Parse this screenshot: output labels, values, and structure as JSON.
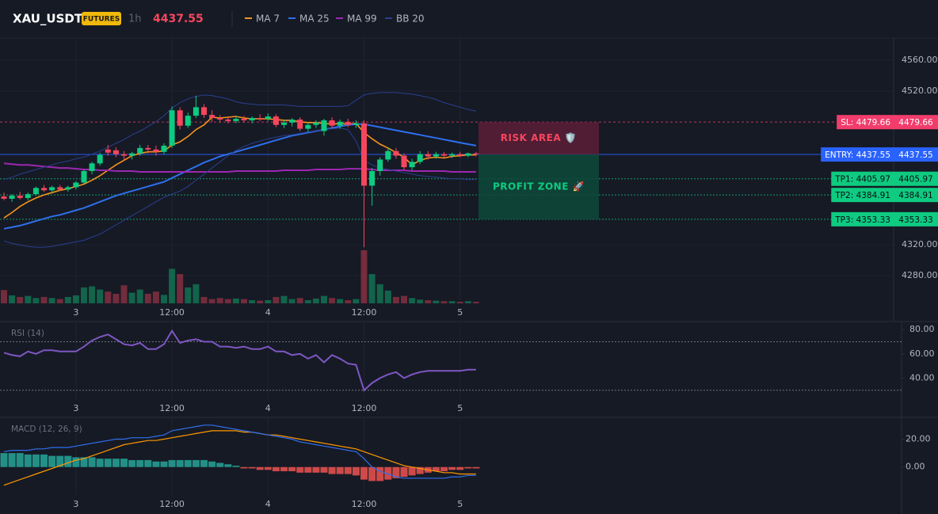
{
  "header": {
    "symbol": "XAU_USDT",
    "badge": "FUTURES",
    "interval": "1h",
    "price": 4437.55
  },
  "chart_data": [
    {
      "type": "candlestick",
      "categories": [
        null,
        null,
        null,
        null,
        null,
        null,
        null,
        null,
        null,
        "3",
        null,
        null,
        null,
        null,
        null,
        null,
        null,
        null,
        null,
        null,
        null,
        "12:00",
        null,
        null,
        null,
        null,
        null,
        null,
        null,
        null,
        null,
        null,
        null,
        "4",
        null,
        null,
        null,
        null,
        null,
        null,
        null,
        null,
        null,
        null,
        null,
        "12:00",
        null,
        null,
        null,
        null,
        null,
        null,
        null,
        null,
        null,
        null,
        null,
        "5",
        null,
        null
      ],
      "open": [
        4383,
        4380,
        4384,
        4381,
        4386,
        4394,
        4391,
        4395,
        4392,
        4395,
        4401,
        4416,
        4426,
        4444,
        4443,
        4438,
        4436,
        4439,
        4446,
        4444,
        4441,
        4449,
        4495,
        4475,
        4488,
        4499,
        4489,
        4485,
        4483,
        4481,
        4484,
        4482,
        4485,
        4484,
        4487,
        4476,
        4479,
        4483,
        4471,
        4476,
        4468,
        4482,
        4475,
        4480,
        4476,
        4478,
        4397,
        4416,
        4431,
        4442,
        4436,
        4421,
        4428,
        4438,
        4435,
        4438,
        4436,
        4438,
        4436,
        4439
      ],
      "high": [
        4388,
        4386,
        4389,
        4388,
        4396,
        4398,
        4397,
        4398,
        4397,
        4403,
        4418,
        4428,
        4440,
        4450,
        4447,
        4442,
        4441,
        4450,
        4450,
        4449,
        4452,
        4500,
        4499,
        4492,
        4514,
        4503,
        4495,
        4489,
        4487,
        4488,
        4488,
        4487,
        4490,
        4491,
        4490,
        4483,
        4485,
        4486,
        4479,
        4482,
        4484,
        4486,
        4483,
        4484,
        4482,
        4482,
        4420,
        4434,
        4446,
        4446,
        4439,
        4432,
        4442,
        4442,
        4441,
        4441,
        4440,
        4441,
        4440,
        4441
      ],
      "low": [
        4378,
        4376,
        4379,
        4378,
        4384,
        4389,
        4388,
        4390,
        4389,
        4392,
        4399,
        4412,
        4423,
        4436,
        4434,
        4430,
        4431,
        4436,
        4439,
        4436,
        4438,
        4446,
        4470,
        4472,
        4485,
        4485,
        4480,
        4479,
        4478,
        4478,
        4479,
        4478,
        4481,
        4481,
        4473,
        4472,
        4474,
        4468,
        4467,
        4472,
        4462,
        4472,
        4471,
        4473,
        4472,
        4317,
        4371,
        4410,
        4428,
        4432,
        4418,
        4417,
        4425,
        4431,
        4432,
        4434,
        4433,
        4434,
        4434,
        4435
      ],
      "close": [
        4380,
        4384,
        4381,
        4386,
        4394,
        4391,
        4395,
        4392,
        4395,
        4401,
        4416,
        4426,
        4437,
        4440,
        4438,
        4436,
        4439,
        4446,
        4444,
        4441,
        4449,
        4495,
        4475,
        4488,
        4499,
        4489,
        4485,
        4483,
        4481,
        4484,
        4482,
        4485,
        4484,
        4487,
        4476,
        4479,
        4483,
        4471,
        4476,
        4479,
        4482,
        4475,
        4480,
        4476,
        4478,
        4397,
        4416,
        4431,
        4442,
        4436,
        4421,
        4428,
        4438,
        4435,
        4438,
        4436,
        4438,
        4436,
        4439,
        4438
      ],
      "volume": [
        25,
        15,
        12,
        14,
        10,
        12,
        10,
        8,
        12,
        15,
        30,
        32,
        26,
        22,
        18,
        34,
        20,
        26,
        18,
        22,
        16,
        65,
        55,
        30,
        36,
        12,
        8,
        10,
        8,
        9,
        8,
        6,
        5,
        6,
        12,
        14,
        8,
        10,
        6,
        9,
        14,
        10,
        8,
        6,
        8,
        100,
        55,
        36,
        24,
        12,
        14,
        10,
        7,
        6,
        5,
        4,
        4,
        3,
        4,
        3
      ],
      "up_color": "#0ecb81",
      "down_color": "#f6465d",
      "ylim": [
        4244,
        4589
      ],
      "yticks": [
        {
          "value": 4560,
          "label": "4560.00"
        },
        {
          "value": 4520,
          "label": "4520.00"
        },
        {
          "value": 4320,
          "label": "4320.00"
        },
        {
          "value": 4280,
          "label": "4280.00"
        }
      ],
      "grid": true,
      "indicators": [
        {
          "name": "MA 7",
          "color": "#f7931a",
          "values": [
            4355,
            4362,
            4370,
            4376,
            4381,
            4385,
            4388,
            4391,
            4393,
            4396,
            4399,
            4404,
            4410,
            4417,
            4424,
            4430,
            4436,
            4439,
            4441,
            4441,
            4442,
            4450,
            4454,
            4461,
            4470,
            4476,
            4486,
            4485,
            4486,
            4487,
            4485,
            4484,
            4484,
            4484,
            4483,
            4482,
            4482,
            4480,
            4479,
            4479,
            4478,
            4477,
            4478,
            4477,
            4478,
            4466,
            4458,
            4451,
            4446,
            4440,
            4434,
            4424,
            4430,
            4433,
            4434,
            4433,
            4435,
            4436,
            4437,
            4437
          ]
        },
        {
          "name": "MA 25",
          "color": "#2f6fed",
          "values": [
            4341,
            4343,
            4345,
            4348,
            4351,
            4354,
            4357,
            4359,
            4362,
            4365,
            4368,
            4372,
            4376,
            4380,
            4384,
            4387,
            4390,
            4393,
            4396,
            4399,
            4402,
            4407,
            4412,
            4417,
            4422,
            4427,
            4431,
            4435,
            4438,
            4441,
            4444,
            4447,
            4450,
            4453,
            4456,
            4459,
            4462,
            4464,
            4466,
            4468,
            4470,
            4472,
            4474,
            4476,
            4477,
            4477,
            4475,
            4473,
            4471,
            4469,
            4467,
            4465,
            4463,
            4461,
            4459,
            4457,
            4455,
            4453,
            4451,
            4449
          ]
        },
        {
          "name": "MA 99",
          "color": "#9c27b0",
          "values": [
            4426,
            4425,
            4424,
            4424,
            4423,
            4422,
            4421,
            4420,
            4420,
            4419,
            4418,
            4418,
            4417,
            4417,
            4416,
            4416,
            4416,
            4415,
            4415,
            4415,
            4415,
            4415,
            4415,
            4415,
            4415,
            4415,
            4415,
            4415,
            4415,
            4416,
            4416,
            4416,
            4416,
            4416,
            4416,
            4417,
            4417,
            4417,
            4417,
            4418,
            4418,
            4418,
            4418,
            4419,
            4419,
            4419,
            4418,
            4417,
            4417,
            4417,
            4417,
            4416,
            4416,
            4416,
            4416,
            4416,
            4415,
            4415,
            4415,
            4415
          ]
        },
        {
          "name": "BB 20",
          "color": "#2a3f8f",
          "upper": [
            4405,
            4408,
            4412,
            4415,
            4418,
            4421,
            4424,
            4427,
            4429,
            4432,
            4434,
            4438,
            4442,
            4447,
            4452,
            4457,
            4463,
            4468,
            4474,
            4480,
            4488,
            4498,
            4505,
            4510,
            4513,
            4515,
            4514,
            4512,
            4510,
            4506,
            4504,
            4503,
            4502,
            4502,
            4502,
            4502,
            4501,
            4500,
            4500,
            4500,
            4500,
            4500,
            4500,
            4501,
            4508,
            4515,
            4517,
            4518,
            4518,
            4518,
            4517,
            4516,
            4514,
            4512,
            4509,
            4505,
            4502,
            4499,
            4496,
            4494
          ],
          "lower": [
            4325,
            4322,
            4320,
            4318,
            4317,
            4317,
            4318,
            4320,
            4322,
            4324,
            4326,
            4330,
            4334,
            4340,
            4346,
            4352,
            4358,
            4364,
            4370,
            4376,
            4382,
            4386,
            4390,
            4396,
            4404,
            4412,
            4420,
            4428,
            4436,
            4443,
            4448,
            4452,
            4455,
            4458,
            4460,
            4462,
            4463,
            4465,
            4467,
            4468,
            4470,
            4471,
            4472,
            4470,
            4455,
            4430,
            4424,
            4420,
            4418,
            4416,
            4414,
            4412,
            4410,
            4409,
            4408,
            4407,
            4406,
            4406,
            4405,
            4405
          ]
        }
      ],
      "levels": [
        {
          "label": "SL: 4479.66",
          "value": 4479.66,
          "color": "#f23d6c",
          "text_color": "#ffffff",
          "style": "dashed"
        },
        {
          "label": "ENTRY: 4437.55",
          "value": 4437.55,
          "color": "#2962ff",
          "text_color": "#ffffff",
          "style": "solid"
        },
        {
          "label": "TP1: 4405.97",
          "value": 4405.97,
          "color": "#0ecb81",
          "text_color": "#0b0e14",
          "style": "dotted"
        },
        {
          "label": "TP2: 4384.91",
          "value": 4384.91,
          "color": "#0ecb81",
          "text_color": "#0b0e14",
          "style": "dotted"
        },
        {
          "label": "TP3: 4353.33",
          "value": 4353.33,
          "color": "#0ecb81",
          "text_color": "#0b0e14",
          "style": "dotted"
        }
      ],
      "zones": [
        {
          "label": "RISK AREA 🛡️",
          "from": 4479.66,
          "to": 4437.55,
          "color": "#5c1f38",
          "text_color": "#f6465d"
        },
        {
          "label": "PROFIT ZONE 🚀",
          "from": 4437.55,
          "to": 4353.33,
          "color": "#0d4a39",
          "text_color": "#0ecb81"
        }
      ]
    },
    {
      "type": "line",
      "title": "RSI (14)",
      "categories": [
        null,
        null,
        null,
        null,
        null,
        null,
        null,
        null,
        null,
        "3",
        null,
        null,
        null,
        null,
        null,
        null,
        null,
        null,
        null,
        null,
        null,
        "12:00",
        null,
        null,
        null,
        null,
        null,
        null,
        null,
        null,
        null,
        null,
        null,
        "4",
        null,
        null,
        null,
        null,
        null,
        null,
        null,
        null,
        null,
        null,
        null,
        "12:00",
        null,
        null,
        null,
        null,
        null,
        null,
        null,
        null,
        null,
        null,
        null,
        "5",
        null,
        null
      ],
      "values": [
        61,
        59,
        58,
        62,
        60,
        63,
        63,
        62,
        62,
        62,
        66,
        71,
        74,
        76,
        72,
        68,
        67,
        69,
        64,
        64,
        68,
        79,
        69,
        71,
        72,
        70,
        70,
        66,
        66,
        65,
        66,
        64,
        64,
        66,
        62,
        62,
        59,
        60,
        56,
        59,
        53,
        59,
        56,
        52,
        51,
        30,
        36,
        40,
        43,
        45,
        40,
        43,
        45,
        46,
        46,
        46,
        46,
        46,
        47,
        47
      ],
      "color": "#7e57c2",
      "ylim": [
        22,
        86
      ],
      "yticks": [
        {
          "value": 80,
          "label": "80.00"
        },
        {
          "value": 60,
          "label": "60.00"
        },
        {
          "value": 40,
          "label": "40.00"
        }
      ],
      "levels": [
        70,
        30
      ]
    },
    {
      "type": "macd",
      "title": "MACD (12, 26, 9)",
      "categories": [
        null,
        null,
        null,
        null,
        null,
        null,
        null,
        null,
        null,
        "3",
        null,
        null,
        null,
        null,
        null,
        null,
        null,
        null,
        null,
        null,
        null,
        "12:00",
        null,
        null,
        null,
        null,
        null,
        null,
        null,
        null,
        null,
        null,
        null,
        "4",
        null,
        null,
        null,
        null,
        null,
        null,
        null,
        null,
        null,
        null,
        null,
        "12:00",
        null,
        null,
        null,
        null,
        null,
        null,
        null,
        null,
        null,
        null,
        null,
        "5",
        null,
        null
      ],
      "macd": {
        "color": "#2f6fed",
        "values": [
          11,
          12,
          12,
          12,
          13,
          13,
          14,
          14,
          14,
          15,
          16,
          17,
          18,
          19,
          20,
          20,
          21,
          21,
          21,
          22,
          23,
          26,
          27,
          28,
          29,
          30,
          30,
          29,
          28,
          27,
          26,
          25,
          24,
          23,
          22,
          21,
          20,
          18,
          17,
          16,
          15,
          14,
          13,
          12,
          11,
          6,
          0,
          -3,
          -5,
          -7,
          -8,
          -8,
          -8,
          -8,
          -8,
          -8,
          -7,
          -7,
          -6,
          -6
        ]
      },
      "signal": {
        "color": "#ff9800",
        "values": [
          -13,
          -11,
          -9,
          -7,
          -5,
          -3,
          -1,
          1,
          3,
          5,
          6,
          8,
          10,
          12,
          14,
          16,
          17,
          18,
          19,
          19,
          20,
          21,
          22,
          23,
          24,
          25,
          26,
          26,
          26,
          26,
          25,
          25,
          24,
          23,
          23,
          22,
          21,
          20,
          19,
          18,
          17,
          16,
          15,
          14,
          13,
          11,
          9,
          7,
          5,
          3,
          1,
          0,
          -1,
          -2,
          -3,
          -4,
          -4,
          -5,
          -5,
          -5
        ]
      },
      "histogram": {
        "up_color": "#26a69a",
        "down_color": "#ef5350",
        "values": [
          10,
          10,
          10,
          9,
          9,
          9,
          8,
          8,
          8,
          7,
          7,
          7,
          6,
          6,
          6,
          6,
          5,
          5,
          5,
          4,
          4,
          5,
          5,
          5,
          5,
          5,
          4,
          3,
          2,
          1,
          -1,
          -1,
          -2,
          -2,
          -3,
          -3,
          -3,
          -4,
          -4,
          -4,
          -4,
          -5,
          -5,
          -5,
          -6,
          -9,
          -10,
          -10,
          -9,
          -8,
          -7,
          -6,
          -5,
          -4,
          -3,
          -3,
          -2,
          -2,
          -1,
          -1
        ]
      },
      "ylim": [
        -20,
        35
      ],
      "yticks": [
        {
          "value": 20,
          "label": "20.00"
        },
        {
          "value": 0,
          "label": "0.00"
        }
      ]
    }
  ]
}
